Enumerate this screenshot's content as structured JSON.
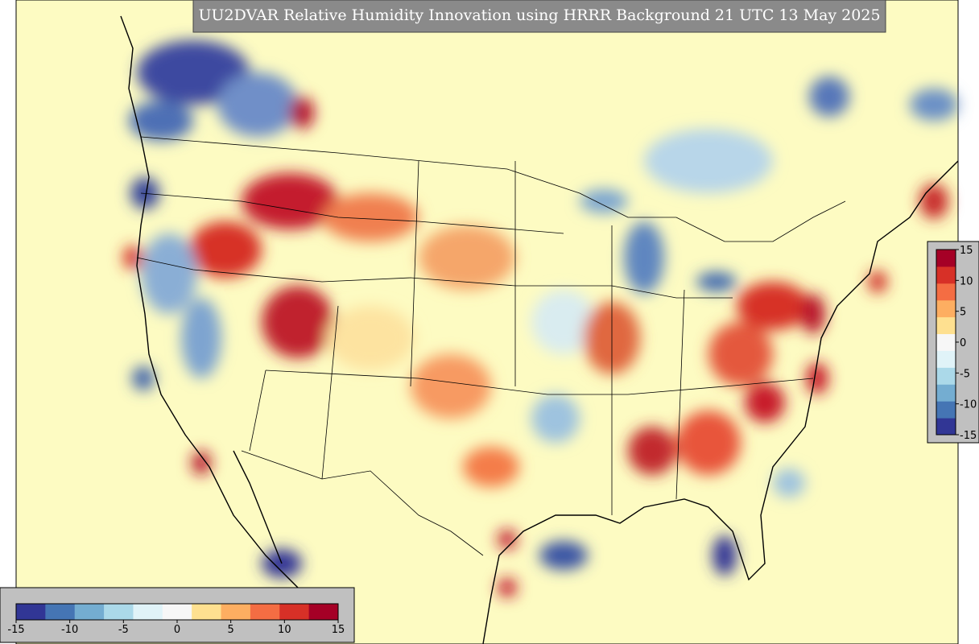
{
  "title": "UU2DVAR Relative Humidity Innovation using HRRR Background 21 UTC 13 May 2025",
  "colormap": [
    "#313695",
    "#4575b4",
    "#74add1",
    "#abd9e9",
    "#e0f3f8",
    "#f7f7f7",
    "#fee090",
    "#fdae61",
    "#f46d43",
    "#d73027",
    "#a50026"
  ],
  "colorbars": [
    {
      "orientation": "horizontal",
      "range": [
        -15,
        15
      ],
      "ticks": [
        -15,
        -10,
        -5,
        0,
        5,
        10,
        15
      ]
    },
    {
      "orientation": "vertical",
      "range": [
        -15,
        15
      ],
      "ticks": [
        -15,
        -10,
        -5,
        0,
        5,
        10,
        15
      ]
    }
  ]
}
